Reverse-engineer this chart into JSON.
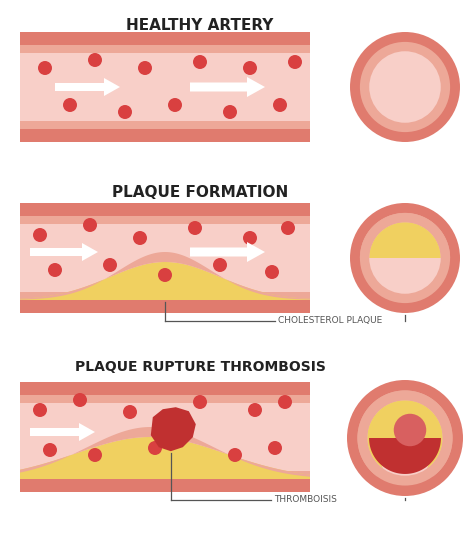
{
  "bg_color": "#ffffff",
  "wall_outer_color": "#e07b6e",
  "wall_inner_color": "#eda898",
  "artery_lumen_color": "#f8cfc8",
  "cell_color": "#d94040",
  "plaque_color": "#f0d060",
  "thrombus_color": "#c03030",
  "arrow_color": "#ffffff",
  "text_color": "#222222",
  "label_color": "#555555",
  "title1": "HEALTHY ARTERY",
  "title2": "PLAQUE FORMATION",
  "title3": "PLAQUE RUPTURE THROMBOSIS",
  "label_cholesterol": "CHOLESTEROL PLAQUE",
  "label_thrombus": "THROMBOISIS"
}
